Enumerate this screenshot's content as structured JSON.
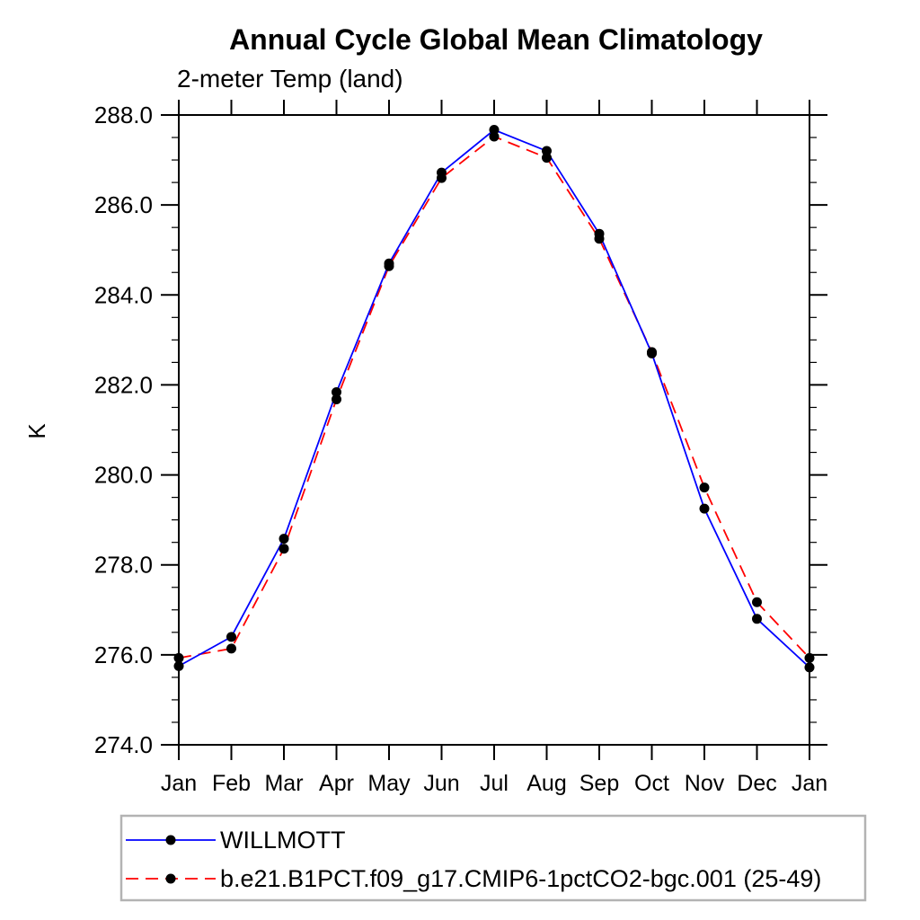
{
  "title": "Annual Cycle Global Mean Climatology",
  "subtitle": "2-meter Temp (land)",
  "ylabel": "K",
  "colors": {
    "obs_line": "#0000ff",
    "model_line": "#ff0000",
    "marker": "#000000",
    "axis": "#000000",
    "legend_border": "#b3b3b3"
  },
  "legend": {
    "items": [
      {
        "label": "WILLMOTT"
      },
      {
        "label": "b.e21.B1PCT.f09_g17.CMIP6-1pctCO2-bgc.001 (25-49)"
      }
    ]
  },
  "chart_data": {
    "type": "line",
    "title": "Annual Cycle Global Mean Climatology",
    "subtitle": "2-meter Temp (land)",
    "xlabel": "",
    "ylabel": "K",
    "categories": [
      "Jan",
      "Feb",
      "Mar",
      "Apr",
      "May",
      "Jun",
      "Jul",
      "Aug",
      "Sep",
      "Oct",
      "Nov",
      "Dec",
      "Jan"
    ],
    "ylim": [
      274.0,
      288.0
    ],
    "y_major_tick_step": 2.0,
    "y_minor_tick_step": 0.5,
    "y_tick_labels": [
      "274.0",
      "276.0",
      "278.0",
      "280.0",
      "282.0",
      "284.0",
      "286.0",
      "288.0"
    ],
    "grid": false,
    "legend_position": "bottom-left",
    "series": [
      {
        "name": "WILLMOTT",
        "color": "#0000ff",
        "style": "solid",
        "marker": "black-dot",
        "values": [
          275.75,
          276.4,
          278.58,
          281.84,
          284.7,
          286.72,
          287.67,
          287.2,
          285.36,
          282.7,
          279.25,
          276.8,
          275.72
        ]
      },
      {
        "name": "b.e21.B1PCT.f09_g17.CMIP6-1pctCO2-bgc.001 (25-49)",
        "color": "#ff0000",
        "style": "dashed",
        "marker": "black-dot",
        "values": [
          275.93,
          276.14,
          278.36,
          281.68,
          284.64,
          286.6,
          287.52,
          287.05,
          285.25,
          282.73,
          279.72,
          277.17,
          275.93
        ]
      }
    ]
  }
}
